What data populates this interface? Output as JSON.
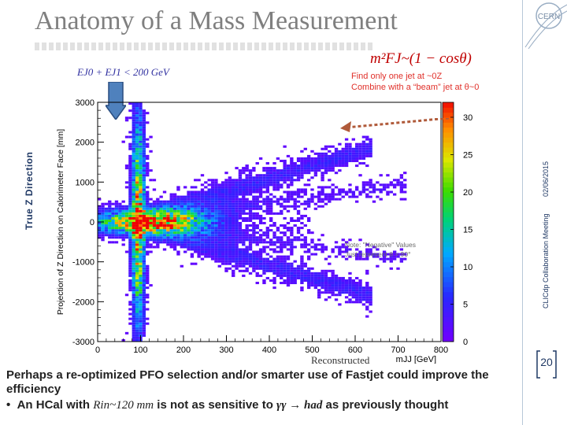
{
  "slide": {
    "title": "Anatomy of a Mass Measurement",
    "side_label": "True Z Direction",
    "side_conference": "CLICdp Collaboration Meeting",
    "side_date": "02/06/2015",
    "slide_number": "20",
    "logo_text": "CERN"
  },
  "annotations": {
    "formula_top": "m²FJ~(1 − cosθ)",
    "energy_cut": "EJ0 + EJ1 < 200 GeV",
    "find_jet": "Find only one jet at ~0Z",
    "combine_beam": "Combine with a “beam” jet at θ~0",
    "reconstructed": "Reconstructed"
  },
  "bullets": {
    "b1": "Perhaps a re-optimized PFO selection and/or smarter use of Fastjet could improve the efficiency",
    "b2_prefix": "An HCal with ",
    "b2_rin": "Rin~120 mm",
    "b2_mid": " is not as sensitive to ",
    "b2_process": "γγ → had",
    "b2_suffix": " as previously thought"
  },
  "chart_data": {
    "type": "heatmap",
    "xlabel": "mJJ [GeV]",
    "ylabel": "Projection of Z Direction on Calorimeter Face [mm]",
    "xlim": [
      0,
      800
    ],
    "ylim": [
      -3000,
      3000
    ],
    "x_ticks": [
      "0",
      "100",
      "200",
      "300",
      "400",
      "500",
      "600",
      "700",
      "800"
    ],
    "y_ticks": [
      "3000",
      "2000",
      "1000",
      "0",
      "-1000",
      "-2000",
      "-3000"
    ],
    "colorbar_ticks": [
      "30",
      "25",
      "20",
      "15",
      "10",
      "5",
      "0"
    ],
    "zlim": [
      0,
      32
    ],
    "note_line1": "Note: \"Negative\" Values",
    "note_line2": "Just represent θ > 90°",
    "colors": {
      "low": "#7a00ff",
      "mid": "#00c000",
      "high": "#ff0000"
    }
  }
}
